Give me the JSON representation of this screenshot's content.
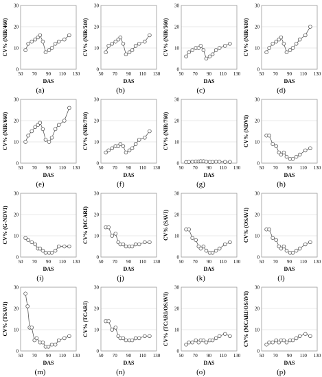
{
  "chart_data": [
    {
      "type": "line",
      "panel": "(a)",
      "ylabel": "CV% (NIR/460)",
      "xlabel": "DAS",
      "ylim": [
        0,
        30
      ],
      "yticks": [
        0,
        10,
        20,
        30
      ],
      "xlim": [
        50,
        130
      ],
      "xticks": [
        50,
        70,
        90,
        110,
        130
      ],
      "x": [
        57,
        61,
        66,
        71,
        75,
        78,
        82,
        86,
        91,
        95,
        100,
        105,
        113,
        120
      ],
      "values": [
        9,
        12,
        13,
        14,
        15,
        16,
        13,
        8,
        9,
        10,
        12,
        13,
        14,
        16
      ]
    },
    {
      "type": "line",
      "panel": "(b)",
      "ylabel": "CV% (NIR/510)",
      "xlabel": "DAS",
      "ylim": [
        0,
        30
      ],
      "yticks": [
        0,
        10,
        20,
        30
      ],
      "xlim": [
        50,
        130
      ],
      "xticks": [
        50,
        70,
        90,
        110,
        130
      ],
      "x": [
        57,
        61,
        66,
        71,
        75,
        78,
        82,
        86,
        91,
        95,
        100,
        105,
        113,
        120
      ],
      "values": [
        8,
        11,
        12,
        13,
        14,
        15,
        12,
        7,
        8,
        9,
        11,
        12,
        13,
        16
      ]
    },
    {
      "type": "line",
      "panel": "(c)",
      "ylabel": "CV% (NIR/560)",
      "xlabel": "DAS",
      "ylim": [
        0,
        30
      ],
      "yticks": [
        0,
        10,
        20,
        30
      ],
      "xlim": [
        50,
        130
      ],
      "xticks": [
        50,
        70,
        90,
        110,
        130
      ],
      "x": [
        57,
        61,
        66,
        71,
        75,
        78,
        82,
        86,
        91,
        95,
        100,
        105,
        113,
        120
      ],
      "values": [
        6,
        8,
        9,
        10,
        10,
        11,
        9,
        5,
        6,
        7,
        9,
        10,
        11,
        12
      ]
    },
    {
      "type": "line",
      "panel": "(d)",
      "ylabel": "CV% (NIR/610)",
      "xlabel": "DAS",
      "ylim": [
        0,
        30
      ],
      "yticks": [
        0,
        10,
        20,
        30
      ],
      "xlim": [
        50,
        130
      ],
      "xticks": [
        50,
        70,
        90,
        110,
        130
      ],
      "x": [
        57,
        61,
        66,
        71,
        75,
        78,
        82,
        86,
        91,
        95,
        100,
        105,
        113,
        120
      ],
      "values": [
        8,
        10,
        12,
        13,
        14,
        15,
        12,
        8,
        9,
        10,
        12,
        14,
        16,
        20
      ]
    },
    {
      "type": "line",
      "panel": "(e)",
      "ylabel": "CV% (NIR/660)",
      "xlabel": "DAS",
      "ylim": [
        0,
        30
      ],
      "yticks": [
        0,
        10,
        20,
        30
      ],
      "xlim": [
        50,
        130
      ],
      "xticks": [
        50,
        70,
        90,
        110,
        130
      ],
      "x": [
        57,
        61,
        66,
        71,
        75,
        78,
        82,
        86,
        91,
        95,
        100,
        105,
        113,
        120
      ],
      "values": [
        10,
        13,
        15,
        17,
        18,
        19,
        16,
        11,
        10,
        12,
        16,
        18,
        20,
        26
      ]
    },
    {
      "type": "line",
      "panel": "(f)",
      "ylabel": "CV% (NIR/710)",
      "xlabel": "DAS",
      "ylim": [
        0,
        30
      ],
      "yticks": [
        0,
        10,
        20,
        30
      ],
      "xlim": [
        50,
        130
      ],
      "xticks": [
        50,
        70,
        90,
        110,
        130
      ],
      "x": [
        57,
        61,
        66,
        71,
        75,
        78,
        82,
        86,
        91,
        95,
        100,
        105,
        113,
        120
      ],
      "values": [
        5,
        6,
        7,
        8,
        8,
        9,
        8,
        5,
        6,
        7,
        9,
        11,
        12,
        15
      ]
    },
    {
      "type": "line",
      "panel": "(g)",
      "ylabel": "CV% (NIR/760)",
      "xlabel": "DAS",
      "ylim": [
        0,
        30
      ],
      "yticks": [
        0,
        10,
        20,
        30
      ],
      "xlim": [
        50,
        130
      ],
      "xticks": [
        50,
        70,
        90,
        110,
        130
      ],
      "x": [
        57,
        61,
        66,
        71,
        75,
        78,
        82,
        86,
        91,
        95,
        100,
        105,
        113,
        120
      ],
      "values": [
        0.5,
        0.6,
        0.7,
        0.8,
        0.8,
        0.9,
        0.9,
        0.7,
        0.6,
        0.6,
        0.7,
        0.7,
        0.6,
        0.6
      ]
    },
    {
      "type": "line",
      "panel": "(h)",
      "ylabel": "CV% (NDVI)",
      "xlabel": "DAS",
      "ylim": [
        0,
        30
      ],
      "yticks": [
        0,
        10,
        20,
        30
      ],
      "xlim": [
        50,
        130
      ],
      "xticks": [
        50,
        70,
        90,
        110,
        130
      ],
      "x": [
        57,
        61,
        66,
        71,
        75,
        78,
        82,
        86,
        91,
        95,
        100,
        105,
        113,
        120
      ],
      "values": [
        13,
        13,
        9,
        8,
        5,
        4,
        5,
        3,
        2,
        2,
        3,
        4,
        6,
        7
      ]
    },
    {
      "type": "line",
      "panel": "(i)",
      "ylabel": "CV% (G-NDVI)",
      "xlabel": "DAS",
      "ylim": [
        0,
        30
      ],
      "yticks": [
        0,
        10,
        20,
        30
      ],
      "xlim": [
        50,
        130
      ],
      "xticks": [
        50,
        70,
        90,
        110,
        130
      ],
      "x": [
        57,
        61,
        66,
        71,
        75,
        78,
        82,
        86,
        91,
        95,
        100,
        105,
        113,
        120
      ],
      "values": [
        9,
        8,
        7,
        6,
        4,
        4,
        3,
        2,
        2,
        2,
        3,
        5,
        5,
        5
      ]
    },
    {
      "type": "line",
      "panel": "(j)",
      "ylabel": "CV% (MCARI)",
      "xlabel": "DAS",
      "ylim": [
        0,
        30
      ],
      "yticks": [
        0,
        10,
        20,
        30
      ],
      "xlim": [
        50,
        130
      ],
      "xticks": [
        50,
        70,
        90,
        110,
        130
      ],
      "x": [
        57,
        61,
        66,
        71,
        75,
        78,
        82,
        86,
        91,
        95,
        100,
        105,
        113,
        120
      ],
      "values": [
        14,
        14,
        10,
        11,
        7,
        6,
        6,
        5,
        5,
        5,
        6,
        6,
        7,
        7
      ]
    },
    {
      "type": "line",
      "panel": "(k)",
      "ylabel": "CV% (SAVI)",
      "xlabel": "DAS",
      "ylim": [
        0,
        30
      ],
      "yticks": [
        0,
        10,
        20,
        30
      ],
      "xlim": [
        50,
        130
      ],
      "xticks": [
        50,
        70,
        90,
        110,
        130
      ],
      "x": [
        57,
        61,
        66,
        71,
        75,
        78,
        82,
        86,
        91,
        95,
        100,
        105,
        113,
        120
      ],
      "values": [
        13,
        13,
        9,
        8,
        5,
        4,
        5,
        3,
        2,
        2,
        3,
        4,
        6,
        7
      ]
    },
    {
      "type": "line",
      "panel": "(l)",
      "ylabel": "CV% (OSAVI)",
      "xlabel": "DAS",
      "ylim": [
        0,
        30
      ],
      "yticks": [
        0,
        10,
        20,
        30
      ],
      "xlim": [
        50,
        130
      ],
      "xticks": [
        50,
        70,
        90,
        110,
        130
      ],
      "x": [
        57,
        61,
        66,
        71,
        75,
        78,
        82,
        86,
        91,
        95,
        100,
        105,
        113,
        120
      ],
      "values": [
        13,
        13,
        9,
        8,
        5,
        4,
        5,
        3,
        2,
        2,
        3,
        4,
        6,
        7
      ]
    },
    {
      "type": "line",
      "panel": "(m)",
      "ylabel": "CV% (TSAVI)",
      "xlabel": "DAS",
      "ylim": [
        0,
        30
      ],
      "yticks": [
        0,
        10,
        20,
        30
      ],
      "xlim": [
        50,
        130
      ],
      "xticks": [
        50,
        70,
        90,
        110,
        130
      ],
      "x": [
        57,
        60,
        63,
        66,
        70,
        73,
        78,
        82,
        86,
        90,
        95,
        100,
        105,
        113,
        120
      ],
      "values": [
        27,
        21,
        11,
        11,
        5,
        6,
        4,
        4,
        2,
        2,
        3,
        3,
        5,
        6,
        7
      ]
    },
    {
      "type": "line",
      "panel": "(n)",
      "ylabel": "CV% (TCARI)",
      "xlabel": "DAS",
      "ylim": [
        0,
        30
      ],
      "yticks": [
        0,
        10,
        20,
        30
      ],
      "xlim": [
        50,
        130
      ],
      "xticks": [
        50,
        70,
        90,
        110,
        130
      ],
      "x": [
        57,
        61,
        66,
        71,
        75,
        78,
        82,
        86,
        91,
        95,
        100,
        105,
        113,
        120
      ],
      "values": [
        14,
        14,
        10,
        11,
        7,
        6,
        6,
        5,
        5,
        5,
        6,
        6,
        7,
        7
      ]
    },
    {
      "type": "line",
      "panel": "(o)",
      "ylabel": "CV% (TCARI/OSAVI)",
      "xlabel": "DAS",
      "ylim": [
        0,
        30
      ],
      "yticks": [
        0,
        10,
        20,
        30
      ],
      "xlim": [
        50,
        130
      ],
      "xticks": [
        50,
        70,
        90,
        110,
        130
      ],
      "x": [
        57,
        61,
        66,
        71,
        75,
        78,
        82,
        86,
        91,
        95,
        100,
        105,
        113,
        120
      ],
      "values": [
        3,
        4,
        4,
        5,
        4,
        5,
        5,
        4,
        5,
        5,
        6,
        7,
        8,
        7
      ]
    },
    {
      "type": "line",
      "panel": "(p)",
      "ylabel": "CV% (MCARI/OSAVI)",
      "xlabel": "DAS",
      "ylim": [
        0,
        30
      ],
      "yticks": [
        0,
        10,
        20,
        30
      ],
      "xlim": [
        50,
        130
      ],
      "xticks": [
        50,
        70,
        90,
        110,
        130
      ],
      "x": [
        57,
        61,
        66,
        71,
        75,
        78,
        82,
        86,
        91,
        95,
        100,
        105,
        113,
        120
      ],
      "values": [
        3,
        4,
        4,
        5,
        4,
        5,
        5,
        4,
        5,
        5,
        6,
        7,
        8,
        7
      ]
    }
  ]
}
